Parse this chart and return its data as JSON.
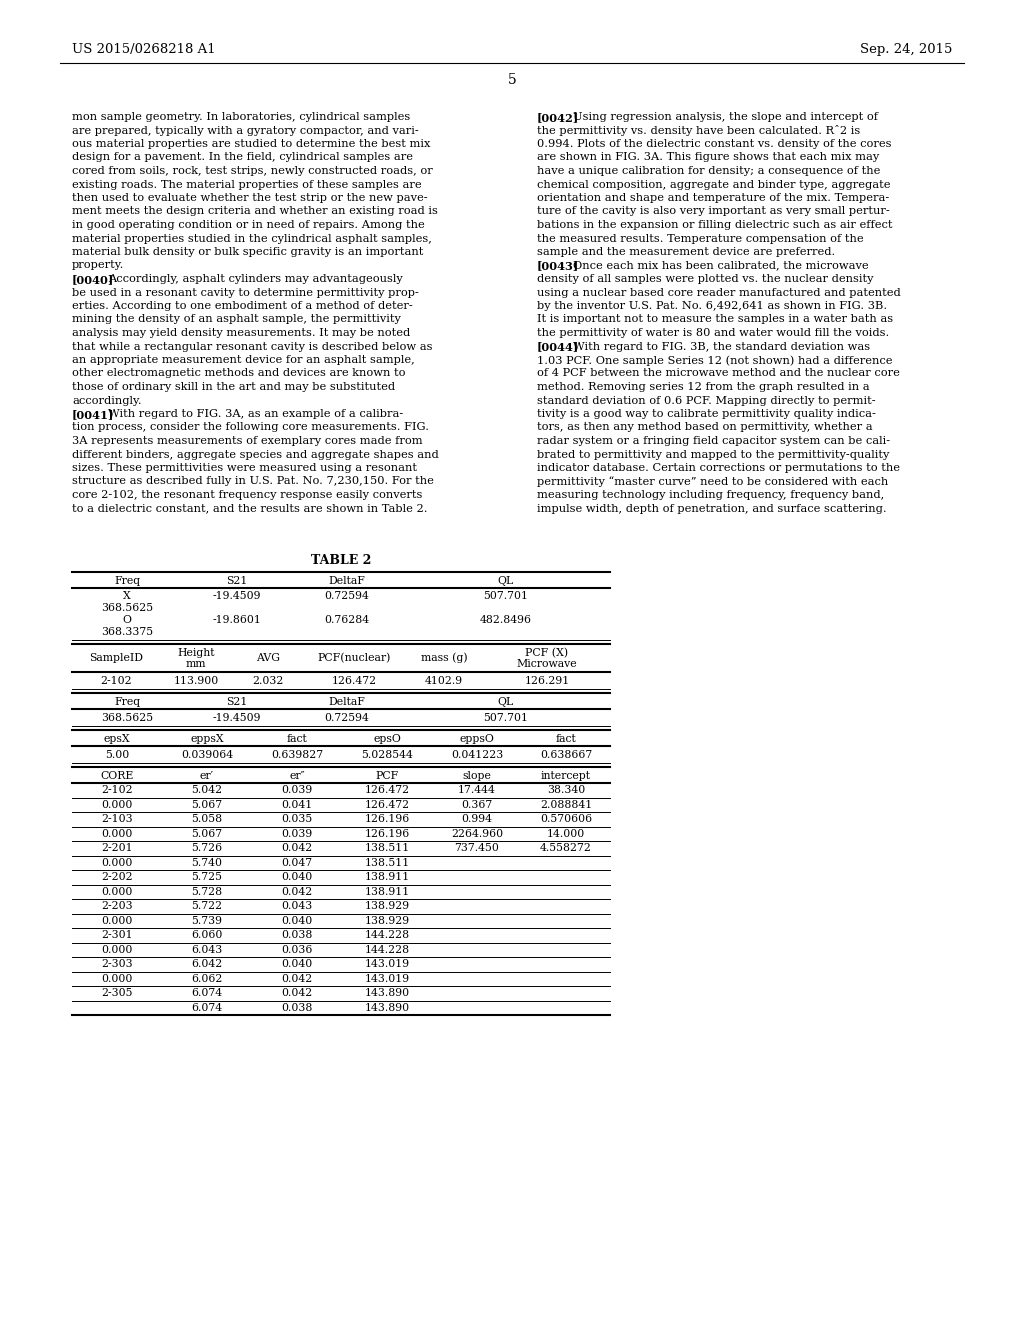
{
  "patent_number": "US 2015/0268218 A1",
  "date": "Sep. 24, 2015",
  "page_number": "5",
  "background_color": "#ffffff",
  "text_color": "#000000",
  "left_col_paras": [
    {
      "lines": [
        "mon sample geometry. In laboratories, cylindrical samples",
        "are prepared, typically with a gyratory compactor, and vari-",
        "ous material properties are studied to determine the best mix",
        "design for a pavement. In the field, cylindrical samples are",
        "cored from soils, rock, test strips, newly constructed roads, or",
        "existing roads. The material properties of these samples are",
        "then used to evaluate whether the test strip or the new pave-",
        "ment meets the design criteria and whether an existing road is",
        "in good operating condition or in need of repairs. Among the",
        "material properties studied in the cylindrical asphalt samples,",
        "material bulk density or bulk specific gravity is an important",
        "property."
      ],
      "indent": false,
      "tag": ""
    },
    {
      "lines": [
        "Accordingly, asphalt cylinders may advantageously",
        "be used in a resonant cavity to determine permittivity prop-",
        "erties. According to one embodiment of a method of deter-",
        "mining the density of an asphalt sample, the permittivity",
        "analysis may yield density measurements. It may be noted",
        "that while a rectangular resonant cavity is described below as",
        "an appropriate measurement device for an asphalt sample,",
        "other electromagnetic methods and devices are known to",
        "those of ordinary skill in the art and may be substituted",
        "accordingly."
      ],
      "indent": true,
      "tag": "[0040]"
    },
    {
      "lines": [
        "With regard to FIG. 3A, as an example of a calibra-",
        "tion process, consider the following core measurements. FIG.",
        "3A represents measurements of exemplary cores made from",
        "different binders, aggregate species and aggregate shapes and",
        "sizes. These permittivities were measured using a resonant",
        "structure as described fully in U.S. Pat. No. 7,230,150. For the",
        "core 2-102, the resonant frequency response easily converts",
        "to a dielectric constant, and the results are shown in Table 2."
      ],
      "indent": true,
      "tag": "[0041]"
    }
  ],
  "right_col_paras": [
    {
      "lines": [
        "Using regression analysis, the slope and intercept of",
        "the permittivity vs. density have been calculated. Rˆ2 is",
        "0.994. Plots of the dielectric constant vs. density of the cores",
        "are shown in FIG. 3A. This figure shows that each mix may",
        "have a unique calibration for density; a consequence of the",
        "chemical composition, aggregate and binder type, aggregate",
        "orientation and shape and temperature of the mix. Tempera-",
        "ture of the cavity is also very important as very small pertur-",
        "bations in the expansion or filling dielectric such as air effect",
        "the measured results. Temperature compensation of the",
        "sample and the measurement device are preferred."
      ],
      "indent": true,
      "tag": "[0042]"
    },
    {
      "lines": [
        "Once each mix has been calibrated, the microwave",
        "density of all samples were plotted vs. the nuclear density",
        "using a nuclear based core reader manufactured and patented",
        "by the inventor U.S. Pat. No. 6,492,641 as shown in FIG. 3B.",
        "It is important not to measure the samples in a water bath as",
        "the permittivity of water is 80 and water would fill the voids."
      ],
      "indent": true,
      "tag": "[0043]"
    },
    {
      "lines": [
        "With regard to FIG. 3B, the standard deviation was",
        "1.03 PCF. One sample Series 12 (not shown) had a difference",
        "of 4 PCF between the microwave method and the nuclear core",
        "method. Removing series 12 from the graph resulted in a",
        "standard deviation of 0.6 PCF. Mapping directly to permit-",
        "tivity is a good way to calibrate permittivity quality indica-",
        "tors, as then any method based on permittivity, whether a",
        "radar system or a fringing field capacitor system can be cali-",
        "brated to permittivity and mapped to the permittivity-quality",
        "indicator database. Certain corrections or permutations to the",
        "permittivity “master curve” need to be considered with each",
        "measuring technology including frequency, frequency band,",
        "impulse width, depth of penetration, and surface scattering."
      ],
      "indent": true,
      "tag": "[0044]"
    }
  ],
  "table_title": "TABLE 2",
  "t1_rows": [
    [
      "X",
      "-19.4509",
      "0.72594",
      "507.701"
    ],
    [
      "368.5625",
      "",
      "",
      ""
    ],
    [
      "O",
      "-19.8601",
      "0.76284",
      "482.8496"
    ],
    [
      "368.3375",
      "",
      "",
      ""
    ]
  ],
  "t2_row": [
    "2-102",
    "113.900",
    "2.032",
    "126.472",
    "4102.9",
    "126.291"
  ],
  "t3_row": [
    "368.5625",
    "-19.4509",
    "0.72594",
    "507.701"
  ],
  "t4_row": [
    "5.00",
    "0.039064",
    "0.639827",
    "5.028544",
    "0.041223",
    "0.638667"
  ],
  "t5_rows": [
    [
      "2-102",
      "5.042",
      "0.039",
      "126.472",
      "17.444",
      "38.340"
    ],
    [
      "0.000",
      "5.067",
      "0.041",
      "126.472",
      "0.367",
      "2.088841"
    ],
    [
      "2-103",
      "5.058",
      "0.035",
      "126.196",
      "0.994",
      "0.570606"
    ],
    [
      "0.000",
      "5.067",
      "0.039",
      "126.196",
      "2264.960",
      "14.000"
    ],
    [
      "2-201",
      "5.726",
      "0.042",
      "138.511",
      "737.450",
      "4.558272"
    ],
    [
      "0.000",
      "5.740",
      "0.047",
      "138.511",
      "",
      ""
    ],
    [
      "2-202",
      "5.725",
      "0.040",
      "138.911",
      "",
      ""
    ],
    [
      "0.000",
      "5.728",
      "0.042",
      "138.911",
      "",
      ""
    ],
    [
      "2-203",
      "5.722",
      "0.043",
      "138.929",
      "",
      ""
    ],
    [
      "0.000",
      "5.739",
      "0.040",
      "138.929",
      "",
      ""
    ],
    [
      "2-301",
      "6.060",
      "0.038",
      "144.228",
      "",
      ""
    ],
    [
      "0.000",
      "6.043",
      "0.036",
      "144.228",
      "",
      ""
    ],
    [
      "2-303",
      "6.042",
      "0.040",
      "143.019",
      "",
      ""
    ],
    [
      "0.000",
      "6.062",
      "0.042",
      "143.019",
      "",
      ""
    ],
    [
      "2-305",
      "6.074",
      "0.042",
      "143.890",
      "",
      ""
    ],
    [
      "",
      "6.074",
      "0.038",
      "143.890",
      "",
      ""
    ]
  ]
}
